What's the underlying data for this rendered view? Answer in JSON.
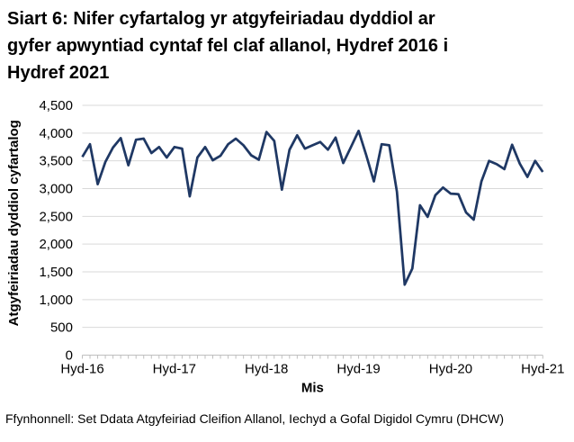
{
  "header": {
    "title_lines": [
      "Siart 6: Nifer cyfartalog yr atgyfeiriadau dyddiol ar",
      "gyfer apwyntiad cyntaf fel claf allanol, Hydref 2016 i",
      "Hydref 2021"
    ]
  },
  "chart_data": {
    "type": "line",
    "title": "Siart 6: Nifer cyfartalog yr atgyfeiriadau dyddiol ar gyfer apwyntiad cyntaf fel claf allanol, Hydref 2016 i Hydref 2021",
    "xlabel": "Mis",
    "ylabel": "Atgyfeiriadau dyddiol cyfartalog",
    "ylim": [
      0,
      4500
    ],
    "y_tick_step": 500,
    "y_tick_labels": [
      "0",
      "500",
      "1,000",
      "1,500",
      "2,000",
      "2,500",
      "3,000",
      "3,500",
      "4,000",
      "4,500"
    ],
    "x_tick_labels": [
      "Hyd-16",
      "Hyd-17",
      "Hyd-18",
      "Hyd-19",
      "Hyd-20",
      "Hyd-21"
    ],
    "x_tick_indices": [
      0,
      12,
      24,
      36,
      48,
      60
    ],
    "x_frequency": "monthly",
    "x_start": "Hydref 2016",
    "x_end": "Hydref 2021",
    "grid": "horizontal",
    "legend": "none",
    "line_color": "#1f3864",
    "grid_color": "#d9d9d9",
    "axis_color": "#bfbfbf",
    "values": [
      3570,
      3800,
      3080,
      3480,
      3740,
      3910,
      3420,
      3880,
      3900,
      3640,
      3750,
      3560,
      3750,
      3720,
      2860,
      3560,
      3750,
      3510,
      3590,
      3800,
      3900,
      3780,
      3600,
      3520,
      4020,
      3860,
      2980,
      3700,
      3960,
      3720,
      3780,
      3840,
      3700,
      3920,
      3460,
      3750,
      4040,
      3600,
      3130,
      3800,
      3780,
      2940,
      1270,
      1560,
      2700,
      2490,
      2880,
      3020,
      2910,
      2900,
      2570,
      2440,
      3130,
      3500,
      3440,
      3350,
      3790,
      3450,
      3210,
      3500,
      3300
    ]
  },
  "footer": {
    "source": "Ffynhonnell: Set Ddata Atgyfeiriad Cleifion Allanol, Iechyd a Gofal Digidol Cymru (DHCW)"
  }
}
